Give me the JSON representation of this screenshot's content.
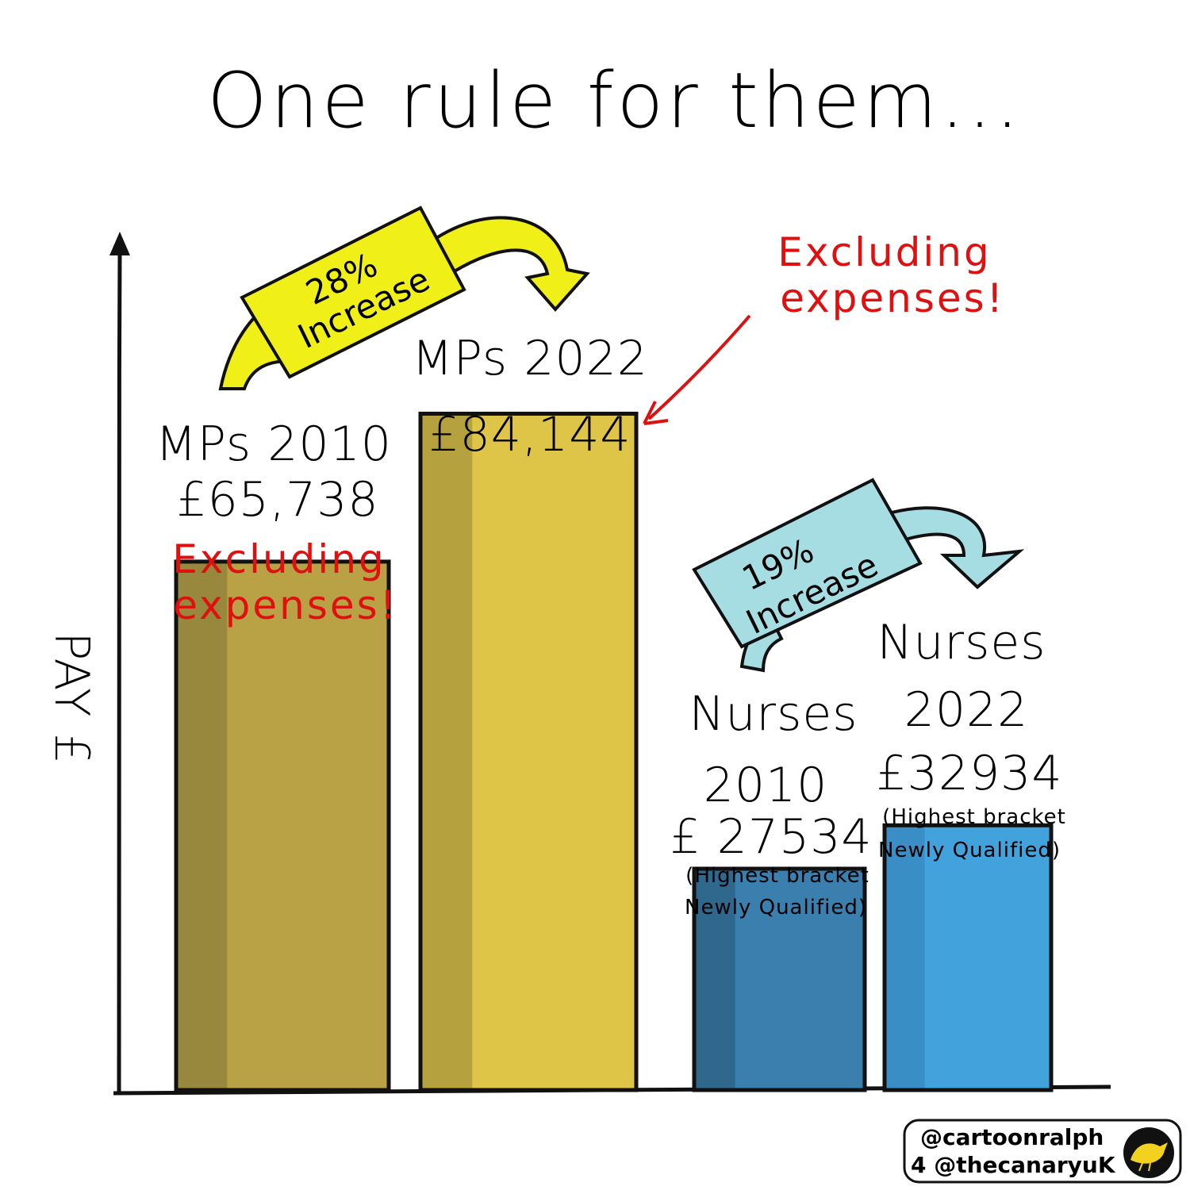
{
  "chart_data": {
    "type": "bar",
    "title": "One rule for them...",
    "ylabel": "PAY £",
    "categories": [
      "MPs 2010",
      "MPs 2022",
      "Nurses 2010",
      "Nurses 2022"
    ],
    "values": [
      65738,
      84144,
      27534,
      32934
    ],
    "value_labels": [
      "£65,738",
      "£84,144",
      "£ 27534",
      "£32934"
    ],
    "ylim": [
      0,
      106000
    ],
    "grid": false,
    "colors": [
      "#b8a245",
      "#dec447",
      "#3a7fad",
      "#42a2dc"
    ],
    "shade_colors": [
      "#98883e",
      "#b5a23f",
      "#2f678d",
      "#3a8ec6"
    ],
    "annotations": {
      "mps_2010_note": "Excluding expenses!",
      "mps_2022_note": "Excluding expenses!",
      "mps_increase": {
        "pct": "28%",
        "word": "Increase",
        "color": "#f0f018"
      },
      "nurses_increase": {
        "pct": "19%",
        "word": "Increase",
        "color": "#a6dde2"
      },
      "nurse_note_line1": "(Highest bracket",
      "nurse_note_line2": "Newly Qualified)"
    }
  },
  "credit": {
    "line1": "@cartoonralph",
    "line2": "4 @thecanaryuK",
    "logo_icon": "canary-bird-icon"
  }
}
